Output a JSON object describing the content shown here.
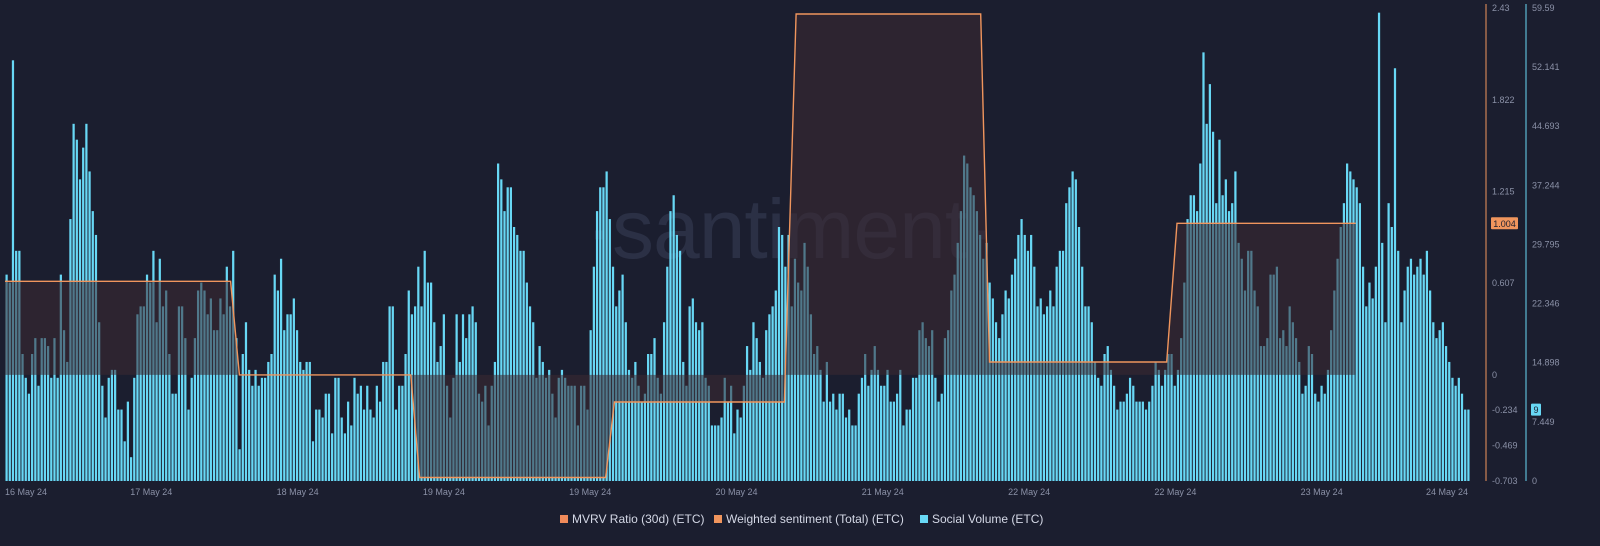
{
  "watermark": "·santiment·",
  "colors": {
    "background": "#1b1e2f",
    "social_volume": "#68d8f5",
    "sentiment": "#f0955d",
    "sentiment_fill": "#3d2a31",
    "mvrv": "#f08a5a"
  },
  "chart_data": {
    "type": "bar",
    "x_labels": [
      "16 May 24",
      "17 May 24",
      "18 May 24",
      "19 May 24",
      "19 May 24",
      "20 May 24",
      "21 May 24",
      "22 May 24",
      "22 May 24",
      "23 May 24",
      "24 May 24"
    ],
    "left_axis": {
      "ticks": [
        "2.43",
        "1.822",
        "1.215",
        "0.607",
        "0",
        "-0.234",
        "-0.469",
        "-0.703"
      ],
      "range": [
        -0.703,
        2.43
      ]
    },
    "right_axis": {
      "ticks": [
        "59.59",
        "52.141",
        "44.693",
        "37.244",
        "29.795",
        "22.346",
        "14.898",
        "7.449",
        "0"
      ],
      "range": [
        0,
        59.59
      ]
    },
    "current_value_badges": {
      "sentiment": "1.004",
      "social_volume": "9"
    },
    "series": [
      {
        "name": "Social Volume (ETC)",
        "type": "bar",
        "axis": "right",
        "values": [
          26,
          25,
          53,
          29,
          29,
          16,
          13,
          11,
          16,
          18,
          12,
          18,
          18,
          17,
          13,
          18,
          13,
          26,
          19,
          15,
          33,
          45,
          43,
          38,
          42,
          45,
          39,
          34,
          31,
          20,
          12,
          8,
          13,
          14,
          14,
          9,
          9,
          5,
          10,
          3,
          13,
          21,
          22,
          22,
          26,
          25,
          29,
          20,
          28,
          22,
          24,
          16,
          11,
          11,
          22,
          22,
          18,
          9,
          13,
          18,
          24,
          25,
          24,
          21,
          23,
          19,
          19,
          23,
          21,
          27,
          22,
          29,
          18,
          4,
          16,
          20,
          14,
          12,
          14,
          12,
          13,
          13,
          15,
          16,
          26,
          24,
          28,
          19,
          21,
          21,
          23,
          19,
          15,
          14,
          15,
          15,
          5,
          9,
          9,
          8,
          11,
          11,
          6,
          13,
          13,
          8,
          6,
          10,
          7,
          13,
          11,
          12,
          9,
          12,
          9,
          8,
          12,
          10,
          15,
          15,
          22,
          22,
          9,
          12,
          12,
          16,
          24,
          21,
          22,
          27,
          22,
          29,
          25,
          25,
          20,
          15,
          17,
          21,
          12,
          8,
          13,
          21,
          15,
          21,
          18,
          21,
          22,
          20,
          11,
          10,
          12,
          7,
          12,
          15,
          40,
          38,
          34,
          37,
          37,
          32,
          31,
          29,
          29,
          25,
          22,
          20,
          13,
          17,
          15,
          13,
          14,
          11,
          8,
          13,
          14,
          13,
          12,
          12,
          12,
          7,
          12,
          12,
          9,
          19,
          27,
          34,
          37,
          37,
          39,
          33,
          27,
          22,
          24,
          26,
          20,
          14,
          13,
          15,
          12,
          10,
          11,
          16,
          16,
          18,
          13,
          11,
          20,
          27,
          34,
          36,
          31,
          29,
          15,
          12,
          22,
          23,
          20,
          19,
          20,
          13,
          12,
          7,
          7,
          7,
          8,
          13,
          10,
          12,
          6,
          9,
          8,
          12,
          17,
          14,
          20,
          18,
          15,
          13,
          19,
          21,
          22,
          24,
          32,
          31,
          27,
          31,
          22,
          28,
          25,
          24,
          30,
          27,
          21,
          16,
          17,
          14,
          10,
          15,
          10,
          11,
          9,
          11,
          11,
          8,
          9,
          7,
          7,
          11,
          13,
          16,
          12,
          14,
          17,
          14,
          12,
          12,
          14,
          10,
          10,
          11,
          14,
          7,
          9,
          9,
          13,
          13,
          19,
          20,
          18,
          17,
          19,
          13,
          10,
          11,
          18,
          19,
          24,
          26,
          30,
          34,
          41,
          40,
          37,
          36,
          34,
          31,
          28,
          30,
          25,
          23,
          20,
          18,
          21,
          24,
          23,
          26,
          28,
          31,
          33,
          31,
          29,
          31,
          27,
          22,
          23,
          21,
          22,
          24,
          22,
          27,
          29,
          29,
          35,
          37,
          39,
          38,
          32,
          27,
          22,
          22,
          20,
          15,
          13,
          12,
          16,
          17,
          14,
          12,
          9,
          10,
          10,
          11,
          13,
          12,
          10,
          10,
          10,
          9,
          10,
          12,
          15,
          14,
          12,
          14,
          16,
          16,
          12,
          14,
          18,
          25,
          33,
          36,
          36,
          34,
          40,
          54,
          45,
          50,
          44,
          35,
          43,
          36,
          38,
          34,
          35,
          39,
          30,
          28,
          24,
          29,
          29,
          24,
          22,
          17,
          17,
          18,
          26,
          26,
          27,
          18,
          19,
          17,
          22,
          20,
          18,
          15,
          11,
          12,
          17,
          16,
          11,
          10,
          12,
          11,
          14,
          19,
          24,
          28,
          32,
          35,
          40,
          39,
          38,
          37,
          35,
          27,
          22,
          25,
          23,
          27,
          59,
          30,
          20,
          35,
          32,
          52,
          29,
          20,
          24,
          27,
          28,
          26,
          27,
          28,
          26,
          29,
          24,
          20,
          18,
          19,
          20,
          17,
          15,
          13,
          12,
          13,
          11,
          9,
          9
        ]
      },
      {
        "name": "Weighted sentiment (Total) (ETC)",
        "type": "step-area",
        "axis": "left",
        "points": [
          {
            "x": 0,
            "y": 0.62
          },
          {
            "x": 0.154,
            "y": 0.62
          },
          {
            "x": 0.16,
            "y": 0.0
          },
          {
            "x": 0.277,
            "y": 0.0
          },
          {
            "x": 0.283,
            "y": -0.68
          },
          {
            "x": 0.41,
            "y": -0.68
          },
          {
            "x": 0.416,
            "y": -0.18
          },
          {
            "x": 0.532,
            "y": -0.18
          },
          {
            "x": 0.54,
            "y": 2.39
          },
          {
            "x": 0.666,
            "y": 2.39
          },
          {
            "x": 0.672,
            "y": 0.085
          },
          {
            "x": 0.793,
            "y": 0.085
          },
          {
            "x": 0.8,
            "y": 1.004
          },
          {
            "x": 0.922,
            "y": 1.004
          }
        ]
      },
      {
        "name": "MVRV Ratio (30d) (ETC)",
        "type": "line",
        "axis": "left",
        "values": []
      }
    ]
  },
  "legend": [
    {
      "label": "MVRV Ratio (30d) (ETC)",
      "color": "#f08a5a"
    },
    {
      "label": "Weighted sentiment (Total) (ETC)",
      "color": "#f0955d"
    },
    {
      "label": "Social Volume (ETC)",
      "color": "#68d8f5"
    }
  ]
}
